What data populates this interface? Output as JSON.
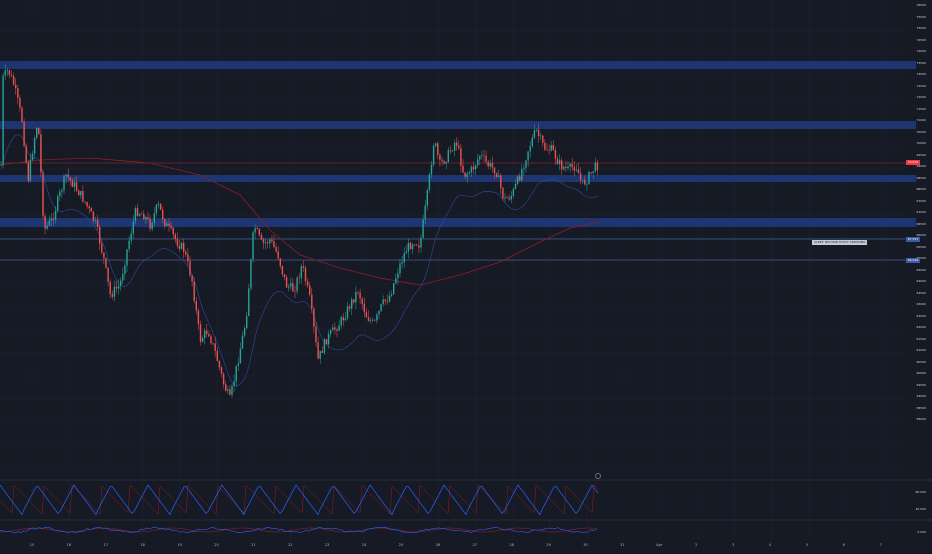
{
  "chart": {
    "background": "#161a25",
    "grid_color": "#1f2331",
    "up_color": "#26a69a",
    "down_color": "#ef5350",
    "zone_color": "#1e3a7a",
    "ma_color": "#8b1e2a",
    "vwap_color": "#2a4b9e",
    "current_price_color": "#f23645",
    "level_line_color": "#5b7fcc",
    "osc_blue": "#2962ff",
    "osc_red": "#b71c1c"
  },
  "price_axis": {
    "labels": [
      "76000",
      "75500",
      "75000",
      "74500",
      "74000",
      "73500",
      "73000",
      "72500",
      "72000",
      "71500",
      "71000",
      "70500",
      "70000",
      "69500",
      "69000",
      "68500",
      "68000",
      "67500",
      "67000",
      "66500",
      "66000",
      "65500",
      "65000",
      "64500",
      "64000",
      "63500",
      "63000",
      "62500",
      "62000",
      "61500",
      "61000",
      "60500",
      "60000",
      "59500",
      "59000",
      "58500",
      "58000"
    ],
    "current_price_tag": "70 070",
    "level_tag_1": "67 537",
    "level_tag_2": "66 046"
  },
  "alert_line_label": "ALERT: BTC/USD 67537 CROSSING",
  "osc_axis": {
    "labels": [
      "80.000",
      "40.000",
      "0.000"
    ]
  },
  "time_axis": {
    "labels": [
      "15",
      "16",
      "17",
      "18",
      "19",
      "20",
      "21",
      "22",
      "23",
      "24",
      "25",
      "26",
      "27",
      "28",
      "29",
      "30",
      "31",
      "Apr",
      "2",
      "3",
      "4",
      "5",
      "6",
      "7"
    ]
  }
}
